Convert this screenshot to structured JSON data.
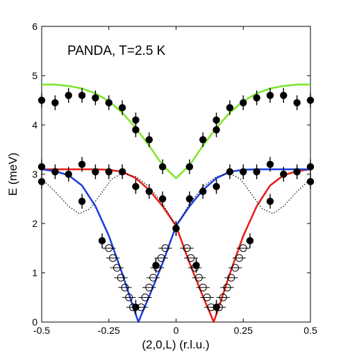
{
  "chart_data": {
    "type": "scatter",
    "title": "",
    "annotation": "PANDA, T=2.5 K",
    "xlabel": "(2,0,L) (r.l.u.)",
    "ylabel": "E (meV)",
    "xlim": [
      -0.5,
      0.5
    ],
    "ylim": [
      0,
      6
    ],
    "xticks": [
      -0.5,
      -0.25,
      0,
      0.25,
      0.5
    ],
    "xtick_labels": [
      "-0.5",
      "-0.25",
      "0",
      "0.25",
      "0.5"
    ],
    "yticks": [
      0,
      1,
      2,
      3,
      4,
      5,
      6
    ],
    "ytick_labels": [
      "0",
      "1",
      "2",
      "3",
      "4",
      "5",
      "6"
    ],
    "grid": false,
    "legend": "none",
    "series": [
      {
        "marker": "filled-circle",
        "color": "#000000",
        "x": [
          -0.5,
          -0.45,
          -0.4,
          -0.35,
          -0.3,
          -0.25,
          -0.2,
          -0.15,
          -0.15,
          -0.1,
          -0.05,
          0.05,
          0.1,
          0.15,
          0.15,
          0.2,
          0.25,
          0.3,
          0.35,
          0.4,
          0.45,
          0.5,
          -0.5,
          -0.45,
          -0.4,
          -0.35,
          -0.3,
          -0.25,
          -0.2,
          -0.15,
          -0.1,
          -0.05,
          0,
          0.05,
          0.1,
          0.15,
          0.2,
          0.25,
          0.3,
          0.35,
          0.4,
          0.45,
          0.5,
          -0.5,
          -0.35,
          -0.275,
          -0.15,
          -0.075,
          0,
          0.075,
          0.15,
          0.275,
          0.35,
          0.5
        ],
        "y": [
          4.5,
          4.45,
          4.6,
          4.6,
          4.55,
          4.45,
          4.35,
          4.1,
          3.9,
          3.7,
          3.15,
          3.15,
          3.7,
          3.9,
          4.1,
          4.35,
          4.45,
          4.55,
          4.6,
          4.6,
          4.45,
          4.5,
          3.15,
          3.05,
          3.0,
          3.2,
          3.05,
          3.05,
          3.05,
          2.75,
          2.65,
          2.5,
          1.9,
          2.5,
          2.65,
          2.75,
          3.05,
          3.05,
          3.05,
          3.2,
          3.0,
          3.05,
          3.15,
          2.85,
          2.45,
          1.65,
          0.3,
          1.15,
          1.9,
          1.15,
          0.3,
          1.65,
          2.45,
          2.85
        ],
        "yerr": [
          0.15,
          0.15,
          0.15,
          0.15,
          0.15,
          0.15,
          0.15,
          0.15,
          0.15,
          0.15,
          0.15,
          0.15,
          0.15,
          0.15,
          0.15,
          0.15,
          0.15,
          0.15,
          0.15,
          0.15,
          0.15,
          0.15,
          0.15,
          0.15,
          0.15,
          0.15,
          0.15,
          0.15,
          0.15,
          0.15,
          0.15,
          0.15,
          0.15,
          0.15,
          0.15,
          0.15,
          0.15,
          0.15,
          0.15,
          0.15,
          0.15,
          0.15,
          0.15,
          0.15,
          0.15,
          0.15,
          0.15,
          0.15,
          0.15,
          0.15,
          0.15,
          0.15,
          0.15,
          0.15
        ]
      },
      {
        "marker": "open-circle",
        "color": "#000000",
        "x": [
          -0.25,
          -0.235,
          -0.22,
          -0.205,
          -0.19,
          -0.175,
          -0.16,
          -0.13,
          -0.115,
          -0.1,
          -0.085,
          -0.07,
          -0.055,
          -0.04,
          0.04,
          0.055,
          0.07,
          0.085,
          0.1,
          0.115,
          0.13,
          0.16,
          0.175,
          0.19,
          0.205,
          0.22,
          0.235,
          0.25
        ],
        "y": [
          1.5,
          1.3,
          1.1,
          0.9,
          0.7,
          0.5,
          0.3,
          0.3,
          0.5,
          0.7,
          0.9,
          1.1,
          1.3,
          1.5,
          1.5,
          1.3,
          1.1,
          0.9,
          0.7,
          0.5,
          0.3,
          0.3,
          0.5,
          0.7,
          0.9,
          1.1,
          1.3,
          1.5
        ],
        "xerr": 0.025
      },
      {
        "type": "line",
        "style": "solid",
        "color": "#7fe52a",
        "x": [
          -0.5,
          -0.45,
          -0.4,
          -0.35,
          -0.3,
          -0.25,
          -0.2,
          -0.15,
          -0.1,
          -0.05,
          0,
          0.05,
          0.1,
          0.15,
          0.2,
          0.25,
          0.3,
          0.35,
          0.4,
          0.45,
          0.5
        ],
        "y": [
          4.82,
          4.82,
          4.79,
          4.74,
          4.64,
          4.48,
          4.25,
          3.94,
          3.58,
          3.18,
          2.92,
          3.18,
          3.58,
          3.94,
          4.25,
          4.48,
          4.64,
          4.74,
          4.79,
          4.82,
          4.82
        ]
      },
      {
        "type": "line",
        "style": "solid",
        "color": "#e8201a",
        "x": [
          -0.5,
          -0.45,
          -0.4,
          -0.35,
          -0.3,
          -0.25,
          -0.2,
          -0.15,
          -0.1,
          -0.05,
          0,
          0.05,
          0.1,
          0.125,
          0.14,
          0.165,
          0.2,
          0.25,
          0.3,
          0.35,
          0.4,
          0.45,
          0.5
        ],
        "y": [
          3.1,
          3.1,
          3.1,
          3.1,
          3.1,
          3.09,
          3.05,
          2.92,
          2.68,
          2.35,
          1.95,
          1.2,
          0.52,
          0.2,
          0.0,
          0.4,
          0.98,
          1.75,
          2.35,
          2.77,
          2.98,
          3.06,
          3.1
        ]
      },
      {
        "type": "line",
        "style": "solid",
        "color": "#2040e0",
        "x": [
          -0.5,
          -0.45,
          -0.4,
          -0.35,
          -0.3,
          -0.25,
          -0.2,
          -0.165,
          -0.14,
          -0.125,
          -0.1,
          -0.05,
          0,
          0.05,
          0.1,
          0.15,
          0.2,
          0.25,
          0.3,
          0.35,
          0.4,
          0.45,
          0.5
        ],
        "y": [
          3.1,
          3.06,
          2.98,
          2.77,
          2.35,
          1.75,
          0.98,
          0.4,
          0.0,
          0.2,
          0.52,
          1.2,
          1.95,
          2.35,
          2.68,
          2.92,
          3.05,
          3.09,
          3.1,
          3.1,
          3.1,
          3.1,
          3.1
        ]
      },
      {
        "type": "line",
        "style": "dotted",
        "color": "#000000",
        "x": [
          -0.5,
          -0.45,
          -0.4,
          -0.36,
          -0.32,
          -0.28,
          -0.24,
          -0.2,
          -0.15,
          -0.1,
          -0.05,
          0,
          0.05,
          0.1,
          0.15,
          0.2,
          0.24,
          0.28,
          0.32,
          0.36,
          0.4,
          0.45,
          0.5
        ],
        "y": [
          2.9,
          2.65,
          2.35,
          2.2,
          2.3,
          2.6,
          2.9,
          3.02,
          2.95,
          2.75,
          2.4,
          1.95,
          2.4,
          2.75,
          2.95,
          3.02,
          2.9,
          2.6,
          2.3,
          2.2,
          2.35,
          2.65,
          2.9
        ]
      }
    ]
  }
}
